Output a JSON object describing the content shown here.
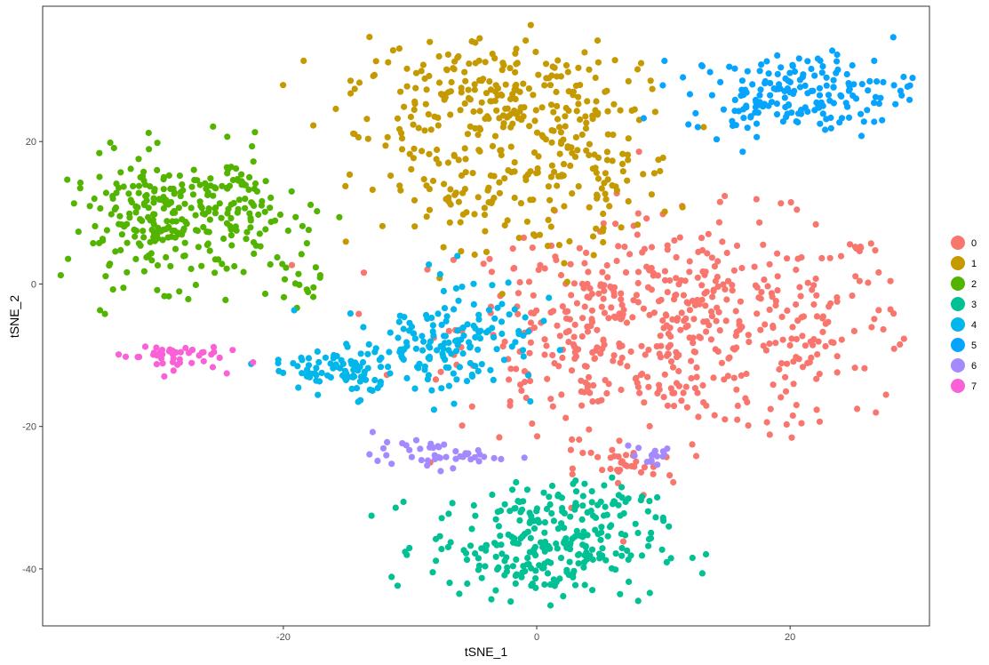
{
  "chart_data": {
    "type": "scatter",
    "title": "",
    "xlabel": "tSNE_1",
    "ylabel": "tSNE_2",
    "xlim": [
      -39,
      31
    ],
    "ylim": [
      -48,
      39
    ],
    "x_ticks": [
      -20,
      0,
      20
    ],
    "y_ticks": [
      -40,
      -20,
      0,
      20
    ],
    "x_tick_labels": [
      "-20",
      "0",
      "20"
    ],
    "y_tick_labels": [
      "-40",
      "-20",
      "0",
      "20"
    ],
    "grid": false,
    "panel_border": true,
    "legend_position": "right",
    "series": [
      {
        "name": "0",
        "color": "#F8766D",
        "n": 620,
        "blobs": [
          {
            "cx": 12,
            "cy": -6,
            "sx": 9.0,
            "sy": 7.5,
            "w": 0.85
          },
          {
            "cx": 2,
            "cy": -7,
            "sx": 3.5,
            "sy": 6.0,
            "w": 0.1
          },
          {
            "cx": 7,
            "cy": -26,
            "sx": 2.0,
            "sy": 2.0,
            "w": 0.05
          }
        ]
      },
      {
        "name": "1",
        "color": "#C49A00",
        "n": 430,
        "blobs": [
          {
            "cx": -4,
            "cy": 27,
            "sx": 5.5,
            "sy": 4.0,
            "w": 0.5
          },
          {
            "cx": -5,
            "cy": 13,
            "sx": 4.5,
            "sy": 5.5,
            "w": 0.25
          },
          {
            "cx": 4,
            "cy": 16,
            "sx": 3.5,
            "sy": 5.0,
            "w": 0.25
          }
        ]
      },
      {
        "name": "2",
        "color": "#53B400",
        "n": 330,
        "blobs": [
          {
            "cx": -29,
            "cy": 9,
            "sx": 4.0,
            "sy": 4.5,
            "w": 0.8
          },
          {
            "cx": -23,
            "cy": 11,
            "sx": 2.5,
            "sy": 4.0,
            "w": 0.15
          },
          {
            "cx": -19,
            "cy": 0,
            "sx": 1.0,
            "sy": 1.5,
            "w": 0.05
          }
        ]
      },
      {
        "name": "3",
        "color": "#00C094",
        "n": 290,
        "blobs": [
          {
            "cx": 0.5,
            "cy": -37,
            "sx": 4.5,
            "sy": 3.5,
            "w": 0.85
          },
          {
            "cx": 3,
            "cy": -30,
            "sx": 3.0,
            "sy": 1.5,
            "w": 0.15
          }
        ]
      },
      {
        "name": "4",
        "color": "#00B6EB",
        "n": 240,
        "blobs": [
          {
            "cx": -16,
            "cy": -12,
            "sx": 2.5,
            "sy": 1.5,
            "w": 0.3
          },
          {
            "cx": -9,
            "cy": -10,
            "sx": 3.0,
            "sy": 3.0,
            "w": 0.35
          },
          {
            "cx": -5,
            "cy": -6,
            "sx": 2.5,
            "sy": 4.0,
            "w": 0.35
          }
        ]
      },
      {
        "name": "5",
        "color": "#06A4FF",
        "n": 190,
        "blobs": [
          {
            "cx": 21,
            "cy": 27,
            "sx": 4.5,
            "sy": 2.8,
            "w": 0.9
          },
          {
            "cx": 17,
            "cy": 24,
            "sx": 1.5,
            "sy": 1.5,
            "w": 0.1
          }
        ]
      },
      {
        "name": "6",
        "color": "#A58AFF",
        "n": 60,
        "blobs": [
          {
            "cx": -8,
            "cy": -24,
            "sx": 2.5,
            "sy": 0.9,
            "w": 0.75
          },
          {
            "cx": 9,
            "cy": -24,
            "sx": 1.2,
            "sy": 1.0,
            "w": 0.25
          }
        ]
      },
      {
        "name": "7",
        "color": "#FB61D7",
        "n": 45,
        "blobs": [
          {
            "cx": -29,
            "cy": -10,
            "sx": 2.0,
            "sy": 1.0,
            "w": 1.0
          }
        ]
      }
    ]
  }
}
